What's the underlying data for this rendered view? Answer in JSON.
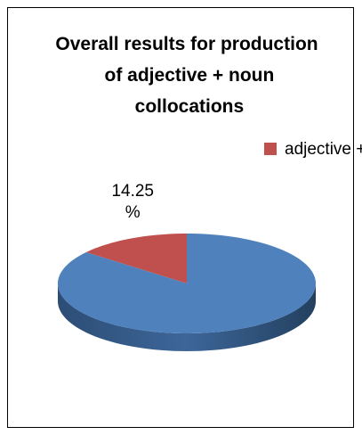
{
  "chart_data": {
    "type": "pie",
    "title": "Overall results for production of adjective + noun collocations",
    "categories": [
      "adjective + noun",
      null
    ],
    "values": [
      14.25,
      85.75
    ],
    "value_labels": [
      "14.25 %",
      null
    ],
    "colors": [
      "#c0504d",
      "#4f81bd"
    ],
    "legend": "top-right"
  }
}
